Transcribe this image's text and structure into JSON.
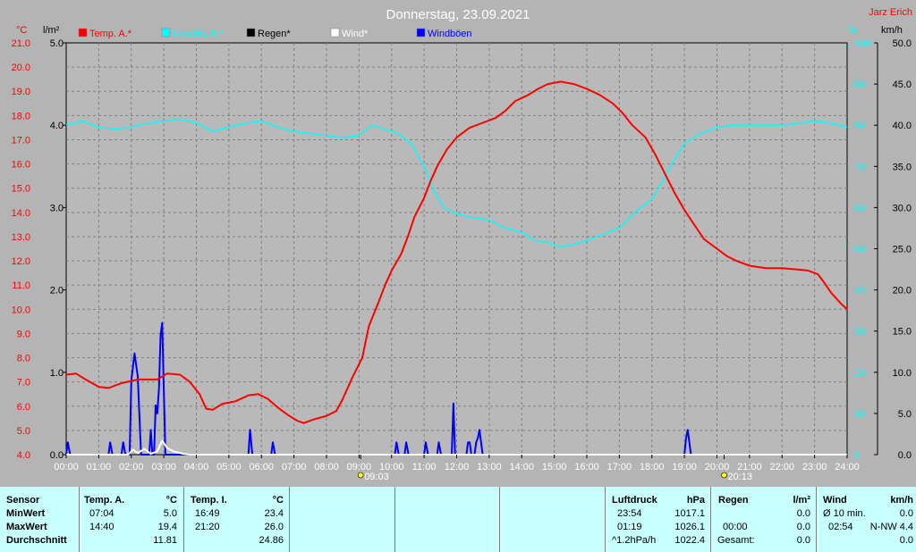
{
  "header": {
    "title": "Donnerstag, 23.09.2021",
    "author": "Jarz Erich"
  },
  "chart_data": {
    "type": "line",
    "title": "Donnerstag, 23.09.2021",
    "x_ticks": [
      "00:00",
      "01:00",
      "02:00",
      "03:00",
      "04:00",
      "05:00",
      "06:00",
      "07:00",
      "08:00",
      "09:00",
      "10:00",
      "11:00",
      "12:00",
      "13:00",
      "14:00",
      "15:00",
      "16:00",
      "17:00",
      "18:00",
      "19:00",
      "20:00",
      "21:00",
      "22:00",
      "23:00",
      "24:00"
    ],
    "x_range": [
      0,
      24
    ],
    "axes": {
      "temp": {
        "unit": "°C",
        "range": [
          4.0,
          21.0
        ],
        "ticks": [
          "4.0",
          "5.0",
          "6.0",
          "7.0",
          "8.0",
          "9.0",
          "10.0",
          "11.0",
          "12.0",
          "13.0",
          "14.0",
          "15.0",
          "16.0",
          "17.0",
          "18.0",
          "19.0",
          "20.0",
          "21.0"
        ],
        "color": "#ff0000"
      },
      "rain": {
        "unit": "l/m²",
        "range": [
          0,
          5
        ],
        "ticks": [
          "0.0",
          "1.0",
          "2.0",
          "3.0",
          "4.0",
          "5.0"
        ],
        "color": "#000000"
      },
      "humidity": {
        "unit": "%",
        "range": [
          0,
          100
        ],
        "ticks": [
          "0",
          "10",
          "20",
          "30",
          "40",
          "50",
          "60",
          "70",
          "80",
          "90",
          "100"
        ],
        "color": "#00ffff"
      },
      "wind": {
        "unit": "km/h",
        "range": [
          0,
          50
        ],
        "ticks": [
          "0.0",
          "5.0",
          "10.0",
          "15.0",
          "20.0",
          "25.0",
          "30.0",
          "35.0",
          "40.0",
          "45.0",
          "50.0"
        ],
        "color": "#000000"
      }
    },
    "legend": [
      {
        "name": "Temp. A.*",
        "color": "#ff0000"
      },
      {
        "name": "Feuchte A.*",
        "color": "#00ffff"
      },
      {
        "name": "Regen*",
        "color": "#000000"
      },
      {
        "name": "Wind*",
        "color": "#ffffff"
      },
      {
        "name": "Windböen",
        "color": "#0000ff"
      }
    ],
    "series": [
      {
        "name": "Temp. A.*",
        "axis": "temp",
        "color": "#ff0000",
        "points": [
          [
            0,
            7.3
          ],
          [
            0.3,
            7.35
          ],
          [
            0.6,
            7.1
          ],
          [
            1.0,
            6.8
          ],
          [
            1.3,
            6.75
          ],
          [
            1.7,
            6.95
          ],
          [
            2.2,
            7.1
          ],
          [
            2.8,
            7.1
          ],
          [
            3.1,
            7.35
          ],
          [
            3.5,
            7.3
          ],
          [
            3.8,
            7.0
          ],
          [
            4.1,
            6.5
          ],
          [
            4.3,
            5.9
          ],
          [
            4.5,
            5.85
          ],
          [
            4.8,
            6.1
          ],
          [
            5.2,
            6.2
          ],
          [
            5.6,
            6.45
          ],
          [
            5.9,
            6.5
          ],
          [
            6.2,
            6.3
          ],
          [
            6.5,
            5.95
          ],
          [
            6.8,
            5.65
          ],
          [
            7.1,
            5.4
          ],
          [
            7.3,
            5.3
          ],
          [
            7.6,
            5.45
          ],
          [
            8.0,
            5.6
          ],
          [
            8.3,
            5.8
          ],
          [
            8.5,
            6.3
          ],
          [
            8.8,
            7.2
          ],
          [
            9.1,
            8.0
          ],
          [
            9.3,
            9.3
          ],
          [
            9.6,
            10.3
          ],
          [
            9.8,
            11.0
          ],
          [
            10.0,
            11.6
          ],
          [
            10.3,
            12.3
          ],
          [
            10.5,
            13.0
          ],
          [
            10.7,
            13.8
          ],
          [
            11.0,
            14.6
          ],
          [
            11.2,
            15.3
          ],
          [
            11.4,
            15.9
          ],
          [
            11.7,
            16.6
          ],
          [
            12.0,
            17.1
          ],
          [
            12.4,
            17.5
          ],
          [
            12.8,
            17.7
          ],
          [
            13.2,
            17.9
          ],
          [
            13.5,
            18.2
          ],
          [
            13.8,
            18.6
          ],
          [
            14.2,
            18.85
          ],
          [
            14.5,
            19.1
          ],
          [
            14.8,
            19.3
          ],
          [
            15.2,
            19.4
          ],
          [
            15.6,
            19.3
          ],
          [
            16.0,
            19.1
          ],
          [
            16.4,
            18.85
          ],
          [
            16.8,
            18.5
          ],
          [
            17.1,
            18.1
          ],
          [
            17.4,
            17.6
          ],
          [
            17.8,
            17.1
          ],
          [
            18.1,
            16.4
          ],
          [
            18.4,
            15.6
          ],
          [
            18.7,
            14.8
          ],
          [
            19.0,
            14.1
          ],
          [
            19.3,
            13.5
          ],
          [
            19.6,
            12.9
          ],
          [
            20.0,
            12.5
          ],
          [
            20.3,
            12.2
          ],
          [
            20.6,
            12.0
          ],
          [
            21.0,
            11.8
          ],
          [
            21.5,
            11.7
          ],
          [
            22.0,
            11.7
          ],
          [
            22.4,
            11.65
          ],
          [
            22.8,
            11.6
          ],
          [
            23.1,
            11.45
          ],
          [
            23.3,
            11.1
          ],
          [
            23.5,
            10.7
          ],
          [
            23.8,
            10.25
          ],
          [
            24.0,
            10.0
          ]
        ]
      },
      {
        "name": "Feuchte A.*",
        "axis": "humidity",
        "color": "#00ffff",
        "points": [
          [
            0,
            80.0
          ],
          [
            0.5,
            81.0
          ],
          [
            1.0,
            79.5
          ],
          [
            1.5,
            79.0
          ],
          [
            2.0,
            79.5
          ],
          [
            2.5,
            80.5
          ],
          [
            3.0,
            81.0
          ],
          [
            3.5,
            81.5
          ],
          [
            4.0,
            80.5
          ],
          [
            4.5,
            78.5
          ],
          [
            5.0,
            79.5
          ],
          [
            5.5,
            80.5
          ],
          [
            6.0,
            81.0
          ],
          [
            6.5,
            79.5
          ],
          [
            7.0,
            78.5
          ],
          [
            7.5,
            78.0
          ],
          [
            8.0,
            77.5
          ],
          [
            8.5,
            77.0
          ],
          [
            9.0,
            77.5
          ],
          [
            9.4,
            80.0
          ],
          [
            9.8,
            79.0
          ],
          [
            10.2,
            78.0
          ],
          [
            10.6,
            75.5
          ],
          [
            11.0,
            70.0
          ],
          [
            11.3,
            64.0
          ],
          [
            11.6,
            60.0
          ],
          [
            12.0,
            58.5
          ],
          [
            12.5,
            57.5
          ],
          [
            13.0,
            57.0
          ],
          [
            13.5,
            55.0
          ],
          [
            14.0,
            54.0
          ],
          [
            14.4,
            52.0
          ],
          [
            14.8,
            51.5
          ],
          [
            15.2,
            50.5
          ],
          [
            15.6,
            51.0
          ],
          [
            16.0,
            52.0
          ],
          [
            16.5,
            53.5
          ],
          [
            17.0,
            55.0
          ],
          [
            17.5,
            59.0
          ],
          [
            18.0,
            62.0
          ],
          [
            18.3,
            66.0
          ],
          [
            18.6,
            70.5
          ],
          [
            19.0,
            75.5
          ],
          [
            19.5,
            78.0
          ],
          [
            20.0,
            79.5
          ],
          [
            20.5,
            80.0
          ],
          [
            21.0,
            80.0
          ],
          [
            22.0,
            80.0
          ],
          [
            22.5,
            80.5
          ],
          [
            23.0,
            81.0
          ],
          [
            23.5,
            80.5
          ],
          [
            24.0,
            79.5
          ]
        ]
      },
      {
        "name": "Wind*",
        "axis": "wind",
        "color": "#ffffff",
        "points": [
          [
            0,
            0
          ],
          [
            1.9,
            0
          ],
          [
            2.05,
            0.6
          ],
          [
            2.2,
            0.2
          ],
          [
            2.4,
            0.7
          ],
          [
            2.6,
            0.1
          ],
          [
            2.8,
            0.4
          ],
          [
            2.95,
            1.7
          ],
          [
            3.1,
            0.8
          ],
          [
            3.3,
            0.4
          ],
          [
            3.6,
            0.1
          ],
          [
            3.8,
            0
          ],
          [
            24,
            0
          ]
        ]
      },
      {
        "name": "Windböen",
        "axis": "wind",
        "color": "#0000ff",
        "points": [
          [
            0,
            0
          ],
          [
            0.05,
            1.5
          ],
          [
            0.12,
            0
          ],
          [
            1.3,
            0
          ],
          [
            1.35,
            1.5
          ],
          [
            1.42,
            0
          ],
          [
            1.7,
            0
          ],
          [
            1.75,
            1.5
          ],
          [
            1.82,
            0
          ],
          [
            1.95,
            0
          ],
          [
            2.0,
            9.0
          ],
          [
            2.1,
            12.3
          ],
          [
            2.2,
            9.5
          ],
          [
            2.3,
            0
          ],
          [
            2.55,
            0
          ],
          [
            2.6,
            3.0
          ],
          [
            2.65,
            0
          ],
          [
            2.7,
            0
          ],
          [
            2.75,
            6.0
          ],
          [
            2.8,
            5.0
          ],
          [
            2.85,
            8.0
          ],
          [
            2.9,
            14.5
          ],
          [
            2.95,
            16.0
          ],
          [
            3.0,
            8.0
          ],
          [
            3.05,
            0
          ],
          [
            5.6,
            0
          ],
          [
            5.65,
            3.0
          ],
          [
            5.72,
            0
          ],
          [
            6.3,
            0
          ],
          [
            6.35,
            1.5
          ],
          [
            6.42,
            0
          ],
          [
            10.1,
            0
          ],
          [
            10.15,
            1.5
          ],
          [
            10.22,
            0
          ],
          [
            10.4,
            0
          ],
          [
            10.45,
            1.5
          ],
          [
            10.52,
            0
          ],
          [
            11.0,
            0
          ],
          [
            11.05,
            1.5
          ],
          [
            11.12,
            0
          ],
          [
            11.4,
            0
          ],
          [
            11.45,
            1.5
          ],
          [
            11.52,
            0
          ],
          [
            11.85,
            0
          ],
          [
            11.9,
            6.2
          ],
          [
            11.95,
            0
          ],
          [
            12.3,
            0
          ],
          [
            12.35,
            1.5
          ],
          [
            12.4,
            1.5
          ],
          [
            12.45,
            0
          ],
          [
            12.55,
            0
          ],
          [
            12.6,
            1.5
          ],
          [
            12.65,
            2.0
          ],
          [
            12.7,
            3.0
          ],
          [
            12.75,
            1.5
          ],
          [
            12.8,
            0
          ],
          [
            19.0,
            0
          ],
          [
            19.05,
            2.0
          ],
          [
            19.1,
            3.0
          ],
          [
            19.15,
            1.5
          ],
          [
            19.2,
            0
          ],
          [
            24,
            0
          ]
        ]
      }
    ],
    "markers": [
      {
        "x": 9.05,
        "label": "09:03"
      },
      {
        "x": 20.22,
        "label": "20:13"
      }
    ],
    "grid": true
  },
  "table": {
    "sensor": {
      "header": "Sensor",
      "rows": [
        "MinWert",
        "MaxWert",
        "Durchschnitt"
      ]
    },
    "temp_a": {
      "header": "Temp. A.",
      "unit": "°C",
      "min_time": "07:04",
      "min_val": "5.0",
      "max_time": "14:40",
      "max_val": "19.4",
      "avg": "11.81"
    },
    "temp_i": {
      "header": "Temp. I.",
      "unit": "°C",
      "min_time": "16:49",
      "min_val": "23.4",
      "max_time": "21:20",
      "max_val": "26.0",
      "avg": "24.86"
    },
    "luftdruck": {
      "header": "Luftdruck",
      "unit": "hPa",
      "min_time": "23:54",
      "min_val": "1017.1",
      "max_time": "01:19",
      "max_val": "1026.1",
      "avg_label": "^1.2hPa/h",
      "avg": "1022.4"
    },
    "regen": {
      "header": "Regen",
      "unit": "l/m²",
      "row2_time": "00:00",
      "row2_val": "0.0",
      "row3_label": "Gesamt:",
      "row3_val": "0.0",
      "row1_val": "0.0"
    },
    "wind": {
      "header": "Wind",
      "unit": "km/h",
      "row1_label": "Ø 10 min.",
      "row1_val": "0.0",
      "row2_time": "02:54",
      "row2_val": "N-NW 4.4",
      "row3_val": "0.0"
    }
  }
}
